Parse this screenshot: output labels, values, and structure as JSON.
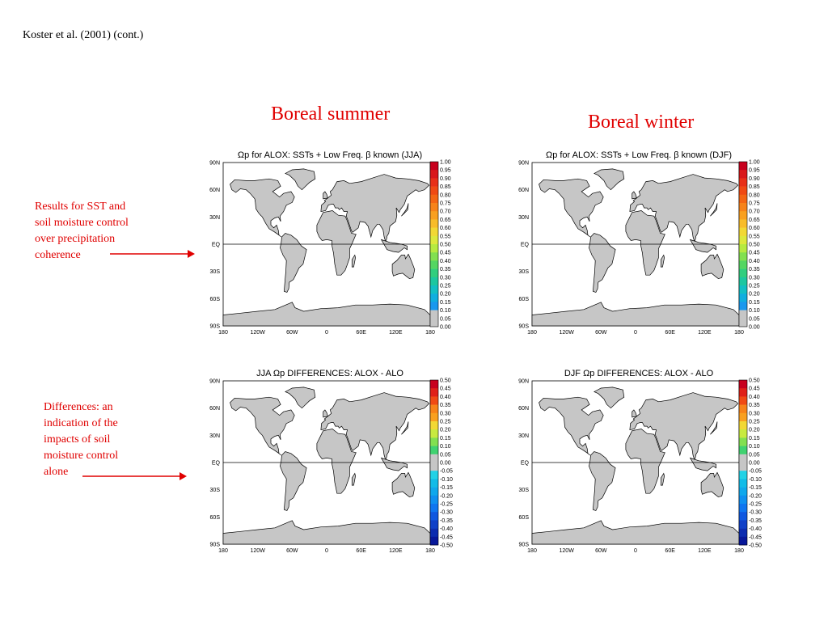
{
  "citation": "Koster et al. (2001) (cont.)",
  "seasons": {
    "summer": "Boreal summer",
    "winter": "Boreal winter"
  },
  "notes": {
    "results": [
      "Results for SST and",
      "soil moisture control",
      "over precipitation",
      "coherence"
    ],
    "differences": [
      "Differences:  an",
      "indication of the",
      "impacts of soil",
      "moisture control",
      "alone"
    ]
  },
  "annotation_color": "#e00000",
  "panels": [
    {
      "id": "jja",
      "title": "Ωp for ALOX: SSTs + Low Freq. β known (JJA)",
      "scale": "coherence"
    },
    {
      "id": "djf",
      "title": "Ωp for ALOX: SSTs + Low Freq. β known (DJF)",
      "scale": "coherence"
    },
    {
      "id": "jja-diff",
      "title": "JJA Ωp DIFFERENCES: ALOX - ALO",
      "scale": "difference"
    },
    {
      "id": "djf-diff",
      "title": "DJF Ωp DIFFERENCES: ALOX - ALO",
      "scale": "difference"
    }
  ],
  "lat_labels": [
    "90N",
    "60N",
    "30N",
    "EQ",
    "30S",
    "60S",
    "90S"
  ],
  "lon_labels": [
    "180",
    "120W",
    "60W",
    "0",
    "60E",
    "120E",
    "180"
  ],
  "coherence_colorbar": {
    "labels": [
      "1.00",
      "0.95",
      "0.90",
      "0.85",
      "0.80",
      "0.75",
      "0.70",
      "0.65",
      "0.60",
      "0.55",
      "0.50",
      "0.45",
      "0.40",
      "0.35",
      "0.30",
      "0.25",
      "0.20",
      "0.15",
      "0.10",
      "0.05",
      "0.00"
    ],
    "colors": [
      "#c8001e",
      "#d9181a",
      "#e83018",
      "#f04a14",
      "#f46614",
      "#f7831a",
      "#f9a020",
      "#f8bc2a",
      "#f2d834",
      "#dde83c",
      "#b6ea40",
      "#82e050",
      "#54d662",
      "#30ce7e",
      "#1cc7a0",
      "#12bfc4",
      "#10aedf",
      "#1a98ee",
      "#c6c6c6",
      "#c6c6c6"
    ]
  },
  "difference_colorbar": {
    "labels": [
      "0.50",
      "0.45",
      "0.40",
      "0.35",
      "0.30",
      "0.25",
      "0.20",
      "0.15",
      "0.10",
      "0.05",
      "0.00",
      "-0.05",
      "-0.10",
      "-0.15",
      "-0.20",
      "-0.25",
      "-0.30",
      "-0.35",
      "-0.40",
      "-0.45",
      "-0.50"
    ],
    "colors": [
      "#c8001e",
      "#e02018",
      "#f04a14",
      "#f7831a",
      "#f9a020",
      "#f2d834",
      "#c8ea40",
      "#82e050",
      "#40d270",
      "#c6c6c6",
      "#c6c6c6",
      "#22d2e6",
      "#12bce8",
      "#10a8ec",
      "#1090f0",
      "#1076f0",
      "#1058e0",
      "#1040c8",
      "#0c2cb0",
      "#08189a"
    ]
  }
}
